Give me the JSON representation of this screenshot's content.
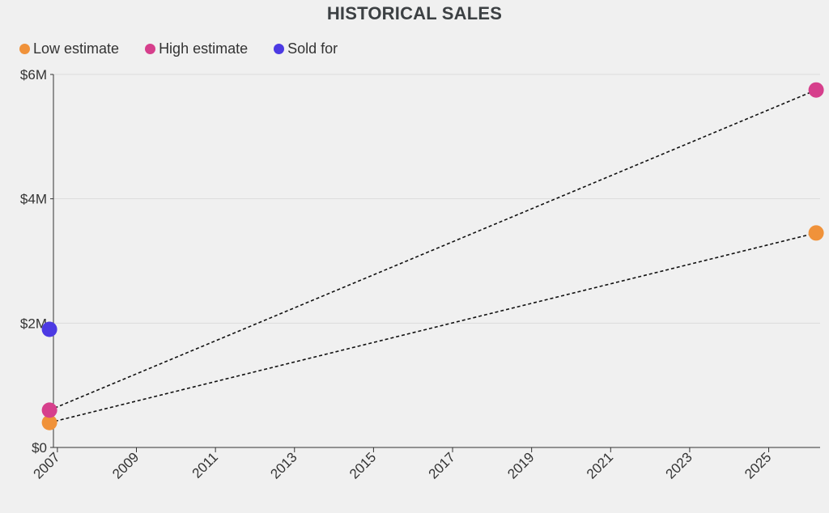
{
  "chart_data": {
    "type": "scatter",
    "title": "HISTORICAL SALES",
    "xlabel": "",
    "ylabel": "",
    "x_ticks": [
      "2007",
      "2009",
      "2011",
      "2013",
      "2015",
      "2017",
      "2019",
      "2021",
      "2023",
      "2025"
    ],
    "y_ticks": [
      "$0",
      "$2M",
      "$4M",
      "$6M"
    ],
    "y_tick_values": [
      0,
      2000000,
      4000000,
      6000000
    ],
    "xlim": [
      2006.9,
      2026.3
    ],
    "ylim": [
      0,
      6000000
    ],
    "grid": "horizontal",
    "legend_position": "top-left",
    "series": [
      {
        "name": "Low estimate",
        "color": "#f0923a",
        "points": [
          {
            "x": 2006.8,
            "y": 400000
          },
          {
            "x": 2026.2,
            "y": 3450000
          }
        ],
        "connector": "dashed"
      },
      {
        "name": "High estimate",
        "color": "#d63f8c",
        "points": [
          {
            "x": 2006.8,
            "y": 600000
          },
          {
            "x": 2026.2,
            "y": 5750000
          }
        ],
        "connector": "dashed"
      },
      {
        "name": "Sold for",
        "color": "#4c3ae3",
        "points": [
          {
            "x": 2006.8,
            "y": 1900000
          }
        ],
        "connector": "none"
      }
    ]
  }
}
